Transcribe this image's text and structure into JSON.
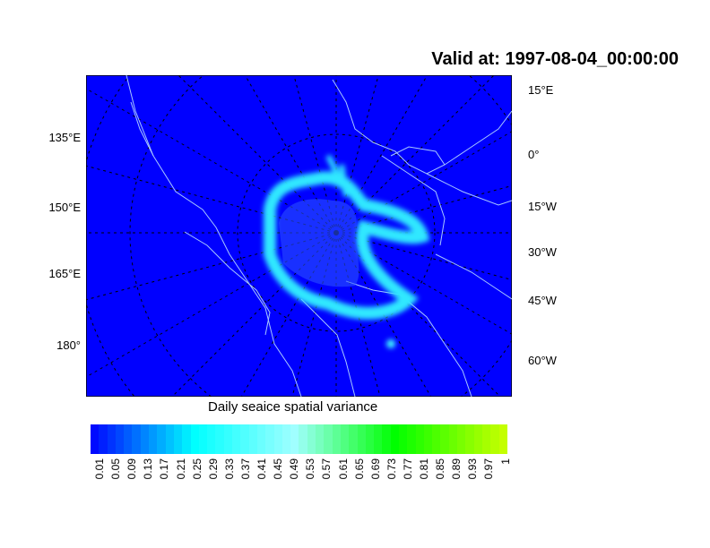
{
  "title": "Valid at: 1997-08-04_00:00:00",
  "subtitle": "Daily seaice spatial variance",
  "map": {
    "projection": "polar stereographic",
    "background_color": "#0000ff",
    "coastline_color": "#a0c8ff",
    "grid_style": "dashed"
  },
  "left_labels": [
    "135°E",
    "150°E",
    "165°E",
    "180°"
  ],
  "right_labels": [
    "15°E",
    "0°",
    "15°W",
    "30°W",
    "45°W",
    "60°W"
  ],
  "colorbar": {
    "labels": [
      "0.01",
      "0.05",
      "0.09",
      "0.13",
      "0.17",
      "0.21",
      "0.25",
      "0.29",
      "0.33",
      "0.37",
      "0.41",
      "0.45",
      "0.49",
      "0.53",
      "0.57",
      "0.61",
      "0.65",
      "0.69",
      "0.73",
      "0.77",
      "0.81",
      "0.85",
      "0.89",
      "0.93",
      "0.97",
      "1"
    ],
    "color_stops": [
      "#0000ff",
      "#00ffff",
      "#a0ffff",
      "#00ff00",
      "#ccff00"
    ]
  }
}
